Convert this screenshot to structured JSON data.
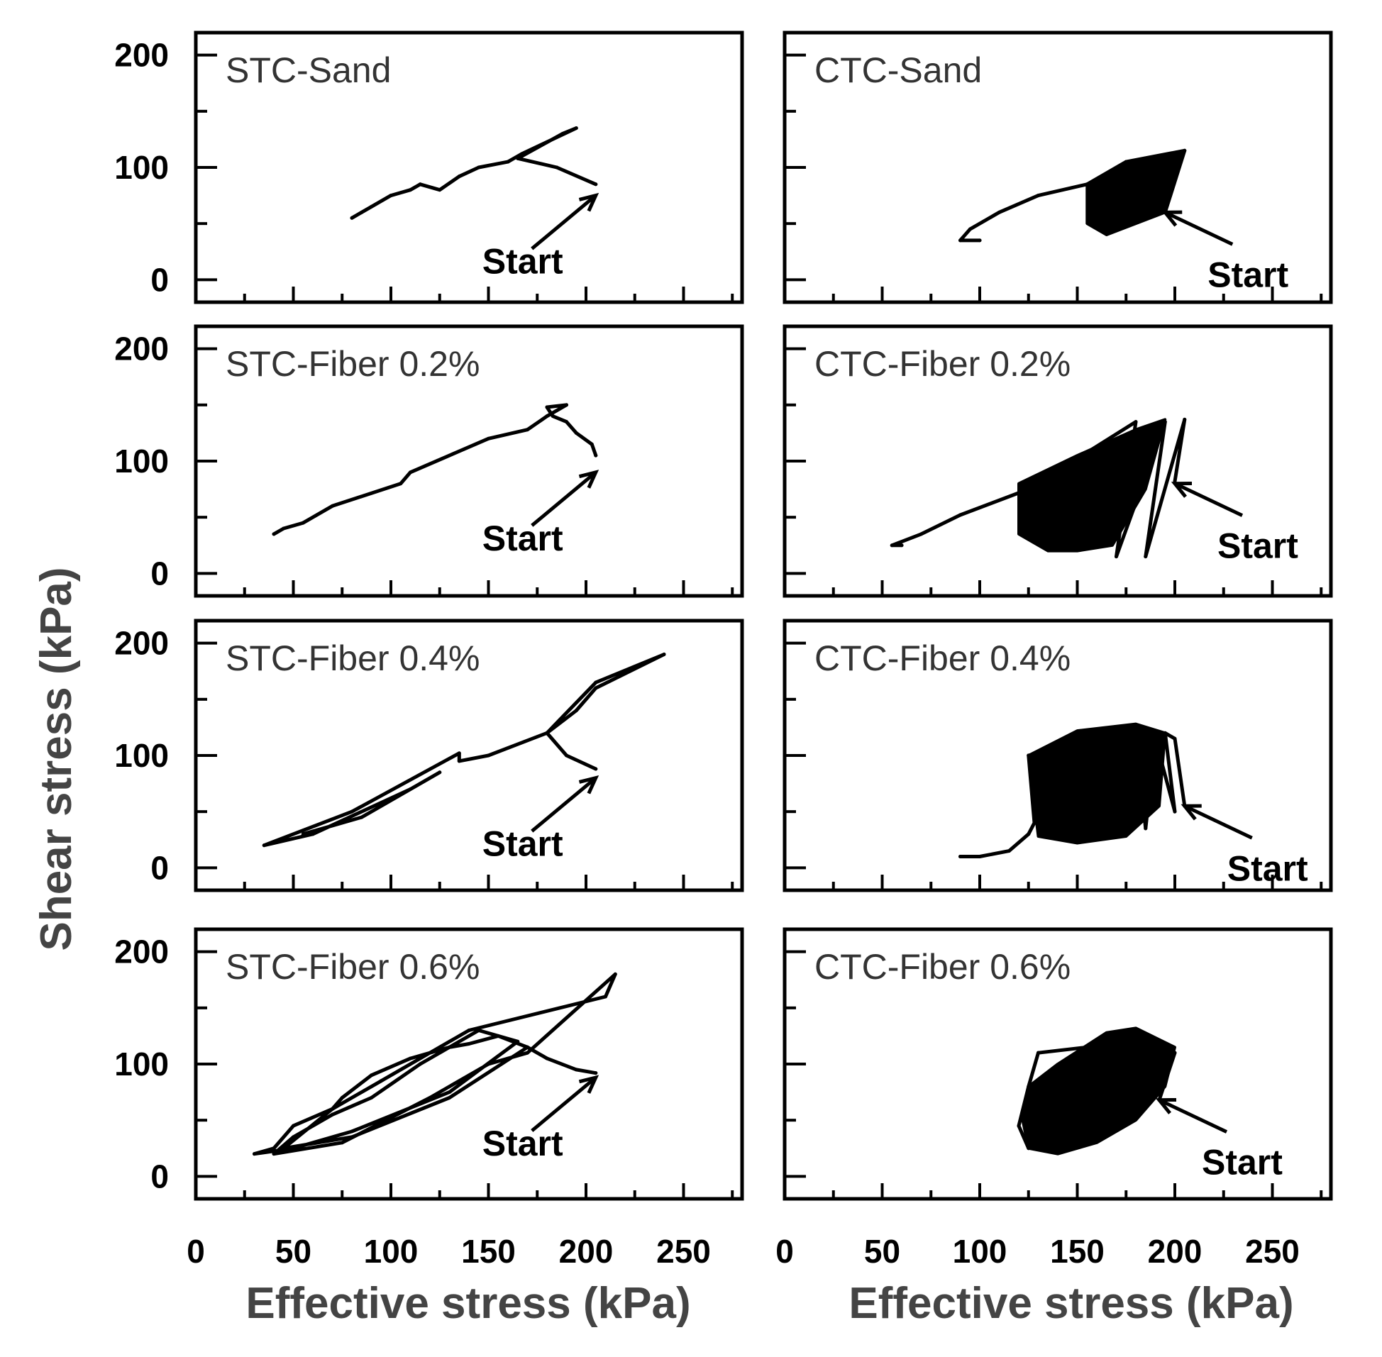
{
  "figure": {
    "ylabel": "Shear stress (kPa)",
    "xlabel": "Effective stress (kPa)"
  },
  "chart_data": [
    {
      "type": "line",
      "title": "STC-Sand",
      "xlim": [
        0,
        280
      ],
      "ylim": [
        -20,
        220
      ],
      "yticks": [
        0,
        100,
        200
      ],
      "xticks": [],
      "annotation": "Start",
      "start_point": [
        205,
        75
      ],
      "series": [
        {
          "name": "stress path",
          "points": [
            [
              205,
              85
            ],
            [
              185,
              100
            ],
            [
              165,
              108
            ],
            [
              188,
              130
            ],
            [
              195,
              135
            ],
            [
              167,
              112
            ],
            [
              160,
              105
            ],
            [
              145,
              100
            ],
            [
              135,
              92
            ],
            [
              125,
              80
            ],
            [
              115,
              85
            ],
            [
              110,
              80
            ],
            [
              100,
              75
            ],
            [
              90,
              65
            ],
            [
              85,
              60
            ],
            [
              80,
              55
            ]
          ]
        }
      ]
    },
    {
      "type": "line",
      "title": "CTC-Sand",
      "xlim": [
        0,
        280
      ],
      "ylim": [
        -20,
        220
      ],
      "yticks": [
        0,
        100,
        200
      ],
      "xticks": [],
      "annotation": "Start",
      "start_point": [
        195,
        60
      ],
      "series": [
        {
          "name": "stress path",
          "points": [
            [
              195,
              60
            ],
            [
              205,
              115
            ],
            [
              175,
              105
            ],
            [
              155,
              85
            ],
            [
              130,
              75
            ],
            [
              110,
              60
            ],
            [
              95,
              45
            ],
            [
              90,
              35
            ],
            [
              100,
              35
            ]
          ]
        }
      ],
      "dense_region": [
        [
          155,
          85
        ],
        [
          175,
          105
        ],
        [
          205,
          115
        ],
        [
          195,
          60
        ],
        [
          165,
          40
        ],
        [
          155,
          50
        ]
      ]
    },
    {
      "type": "line",
      "title": "STC-Fiber 0.2%",
      "xlim": [
        0,
        280
      ],
      "ylim": [
        -20,
        220
      ],
      "yticks": [
        0,
        100,
        200
      ],
      "xticks": [],
      "annotation": "Start",
      "start_point": [
        205,
        90
      ],
      "series": [
        {
          "name": "stress path",
          "points": [
            [
              205,
              105
            ],
            [
              203,
              115
            ],
            [
              195,
              125
            ],
            [
              190,
              135
            ],
            [
              183,
              140
            ],
            [
              180,
              148
            ],
            [
              190,
              150
            ],
            [
              180,
              140
            ],
            [
              170,
              128
            ],
            [
              150,
              120
            ],
            [
              110,
              90
            ],
            [
              105,
              80
            ],
            [
              70,
              60
            ],
            [
              55,
              45
            ],
            [
              45,
              40
            ],
            [
              40,
              35
            ]
          ]
        }
      ]
    },
    {
      "type": "line",
      "title": "CTC-Fiber 0.2%",
      "xlim": [
        0,
        280
      ],
      "ylim": [
        -20,
        220
      ],
      "yticks": [
        0,
        100,
        200
      ],
      "xticks": [],
      "annotation": "Start",
      "start_point": [
        200,
        80
      ],
      "series": [
        {
          "name": "stress path",
          "points": [
            [
              200,
              82
            ],
            [
              205,
              137
            ],
            [
              185,
              15
            ],
            [
              195,
              135
            ],
            [
              170,
              15
            ],
            [
              180,
              135
            ],
            [
              125,
              75
            ],
            [
              90,
              52
            ],
            [
              70,
              35
            ],
            [
              55,
              25
            ],
            [
              60,
              25
            ]
          ]
        }
      ],
      "dense_region": [
        [
          120,
          80
        ],
        [
          150,
          105
        ],
        [
          180,
          128
        ],
        [
          195,
          137
        ],
        [
          185,
          75
        ],
        [
          168,
          25
        ],
        [
          150,
          20
        ],
        [
          135,
          20
        ],
        [
          120,
          35
        ],
        [
          120,
          60
        ]
      ]
    },
    {
      "type": "line",
      "title": "STC-Fiber 0.4%",
      "xlim": [
        0,
        280
      ],
      "ylim": [
        -20,
        220
      ],
      "yticks": [
        0,
        100,
        200
      ],
      "xticks": [],
      "annotation": "Start",
      "start_point": [
        205,
        80
      ],
      "series": [
        {
          "name": "stress path",
          "points": [
            [
              205,
              88
            ],
            [
              190,
              100
            ],
            [
              180,
              120
            ],
            [
              195,
              140
            ],
            [
              205,
              160
            ],
            [
              240,
              190
            ],
            [
              205,
              165
            ],
            [
              180,
              120
            ],
            [
              150,
              100
            ],
            [
              135,
              95
            ],
            [
              135,
              102
            ],
            [
              80,
              50
            ],
            [
              35,
              20
            ],
            [
              60,
              30
            ],
            [
              110,
              70
            ],
            [
              125,
              85
            ],
            [
              85,
              45
            ],
            [
              55,
              30
            ]
          ]
        }
      ]
    },
    {
      "type": "line",
      "title": "CTC-Fiber 0.4%",
      "xlim": [
        0,
        280
      ],
      "ylim": [
        -20,
        220
      ],
      "yticks": [
        0,
        100,
        200
      ],
      "xticks": [],
      "annotation": "Start",
      "start_point": [
        205,
        55
      ],
      "series": [
        {
          "name": "stress path",
          "points": [
            [
              205,
              55
            ],
            [
              200,
              115
            ],
            [
              195,
              120
            ],
            [
              200,
              50
            ],
            [
              190,
              115
            ],
            [
              185,
              35
            ],
            [
              180,
              120
            ],
            [
              125,
              100
            ],
            [
              128,
              40
            ],
            [
              125,
              30
            ],
            [
              115,
              15
            ],
            [
              100,
              10
            ],
            [
              90,
              10
            ]
          ]
        }
      ],
      "dense_region": [
        [
          125,
          100
        ],
        [
          150,
          122
        ],
        [
          180,
          128
        ],
        [
          195,
          120
        ],
        [
          192,
          55
        ],
        [
          175,
          28
        ],
        [
          150,
          22
        ],
        [
          130,
          28
        ]
      ]
    },
    {
      "type": "line",
      "title": "STC-Fiber 0.6%",
      "xlim": [
        0,
        280
      ],
      "ylim": [
        -20,
        220
      ],
      "yticks": [
        0,
        100,
        200
      ],
      "xticks": [
        0,
        50,
        100,
        150,
        200,
        250
      ],
      "annotation": "Start",
      "start_point": [
        205,
        88
      ],
      "series": [
        {
          "name": "stress path",
          "points": [
            [
              205,
              92
            ],
            [
              195,
              95
            ],
            [
              180,
              105
            ],
            [
              170,
              115
            ],
            [
              155,
              125
            ],
            [
              140,
              118
            ],
            [
              130,
              115
            ],
            [
              110,
              105
            ],
            [
              90,
              90
            ],
            [
              75,
              70
            ],
            [
              70,
              60
            ],
            [
              50,
              45
            ],
            [
              40,
              25
            ],
            [
              30,
              20
            ],
            [
              50,
              25
            ],
            [
              80,
              40
            ],
            [
              130,
              75
            ],
            [
              165,
              120
            ],
            [
              145,
              130
            ],
            [
              115,
              100
            ],
            [
              90,
              70
            ],
            [
              70,
              55
            ],
            [
              50,
              35
            ],
            [
              40,
              20
            ],
            [
              75,
              30
            ],
            [
              120,
              70
            ],
            [
              150,
              100
            ],
            [
              170,
              110
            ],
            [
              215,
              180
            ],
            [
              210,
              160
            ],
            [
              140,
              130
            ],
            [
              95,
              85
            ],
            [
              70,
              60
            ],
            [
              45,
              25
            ],
            [
              80,
              35
            ],
            [
              130,
              70
            ],
            [
              170,
              115
            ]
          ]
        }
      ]
    },
    {
      "type": "line",
      "title": "CTC-Fiber 0.6%",
      "xlim": [
        0,
        280
      ],
      "ylim": [
        -20,
        220
      ],
      "yticks": [
        0,
        100,
        200
      ],
      "xticks": [
        0,
        50,
        100,
        150,
        200,
        250
      ],
      "annotation": "Start",
      "start_point": [
        192,
        68
      ],
      "series": [
        {
          "name": "stress path",
          "points": [
            [
              192,
              68
            ],
            [
              200,
              110
            ],
            [
              180,
              130
            ],
            [
              155,
              115
            ],
            [
              130,
              110
            ],
            [
              125,
              80
            ],
            [
              120,
              45
            ],
            [
              125,
              25
            ]
          ]
        }
      ],
      "dense_region": [
        [
          125,
          80
        ],
        [
          140,
          100
        ],
        [
          165,
          128
        ],
        [
          180,
          132
        ],
        [
          200,
          115
        ],
        [
          195,
          80
        ],
        [
          180,
          50
        ],
        [
          160,
          30
        ],
        [
          140,
          20
        ],
        [
          125,
          25
        ],
        [
          122,
          50
        ]
      ]
    }
  ]
}
